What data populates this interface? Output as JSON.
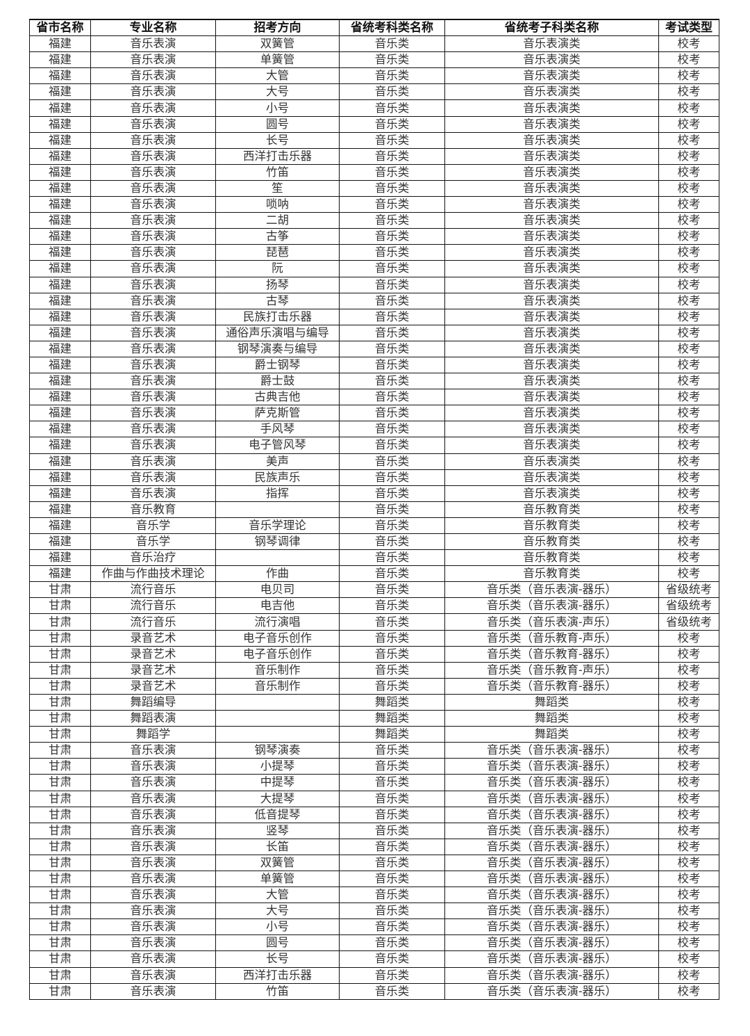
{
  "table": {
    "headers": [
      "省市名称",
      "专业名称",
      "招考方向",
      "省统考科类名称",
      "省统考子科类名称",
      "考试类型"
    ],
    "rows": [
      [
        "福建",
        "音乐表演",
        "双簧管",
        "音乐类",
        "音乐表演类",
        "校考"
      ],
      [
        "福建",
        "音乐表演",
        "单簧管",
        "音乐类",
        "音乐表演类",
        "校考"
      ],
      [
        "福建",
        "音乐表演",
        "大管",
        "音乐类",
        "音乐表演类",
        "校考"
      ],
      [
        "福建",
        "音乐表演",
        "大号",
        "音乐类",
        "音乐表演类",
        "校考"
      ],
      [
        "福建",
        "音乐表演",
        "小号",
        "音乐类",
        "音乐表演类",
        "校考"
      ],
      [
        "福建",
        "音乐表演",
        "圆号",
        "音乐类",
        "音乐表演类",
        "校考"
      ],
      [
        "福建",
        "音乐表演",
        "长号",
        "音乐类",
        "音乐表演类",
        "校考"
      ],
      [
        "福建",
        "音乐表演",
        "西洋打击乐器",
        "音乐类",
        "音乐表演类",
        "校考"
      ],
      [
        "福建",
        "音乐表演",
        "竹笛",
        "音乐类",
        "音乐表演类",
        "校考"
      ],
      [
        "福建",
        "音乐表演",
        "笙",
        "音乐类",
        "音乐表演类",
        "校考"
      ],
      [
        "福建",
        "音乐表演",
        "唢呐",
        "音乐类",
        "音乐表演类",
        "校考"
      ],
      [
        "福建",
        "音乐表演",
        "二胡",
        "音乐类",
        "音乐表演类",
        "校考"
      ],
      [
        "福建",
        "音乐表演",
        "古筝",
        "音乐类",
        "音乐表演类",
        "校考"
      ],
      [
        "福建",
        "音乐表演",
        "琵琶",
        "音乐类",
        "音乐表演类",
        "校考"
      ],
      [
        "福建",
        "音乐表演",
        "阮",
        "音乐类",
        "音乐表演类",
        "校考"
      ],
      [
        "福建",
        "音乐表演",
        "扬琴",
        "音乐类",
        "音乐表演类",
        "校考"
      ],
      [
        "福建",
        "音乐表演",
        "古琴",
        "音乐类",
        "音乐表演类",
        "校考"
      ],
      [
        "福建",
        "音乐表演",
        "民族打击乐器",
        "音乐类",
        "音乐表演类",
        "校考"
      ],
      [
        "福建",
        "音乐表演",
        "通俗声乐演唱与编导",
        "音乐类",
        "音乐表演类",
        "校考"
      ],
      [
        "福建",
        "音乐表演",
        "钢琴演奏与编导",
        "音乐类",
        "音乐表演类",
        "校考"
      ],
      [
        "福建",
        "音乐表演",
        "爵士钢琴",
        "音乐类",
        "音乐表演类",
        "校考"
      ],
      [
        "福建",
        "音乐表演",
        "爵士鼓",
        "音乐类",
        "音乐表演类",
        "校考"
      ],
      [
        "福建",
        "音乐表演",
        "古典吉他",
        "音乐类",
        "音乐表演类",
        "校考"
      ],
      [
        "福建",
        "音乐表演",
        "萨克斯管",
        "音乐类",
        "音乐表演类",
        "校考"
      ],
      [
        "福建",
        "音乐表演",
        "手风琴",
        "音乐类",
        "音乐表演类",
        "校考"
      ],
      [
        "福建",
        "音乐表演",
        "电子管风琴",
        "音乐类",
        "音乐表演类",
        "校考"
      ],
      [
        "福建",
        "音乐表演",
        "美声",
        "音乐类",
        "音乐表演类",
        "校考"
      ],
      [
        "福建",
        "音乐表演",
        "民族声乐",
        "音乐类",
        "音乐表演类",
        "校考"
      ],
      [
        "福建",
        "音乐表演",
        "指挥",
        "音乐类",
        "音乐表演类",
        "校考"
      ],
      [
        "福建",
        "音乐教育",
        "",
        "音乐类",
        "音乐教育类",
        "校考"
      ],
      [
        "福建",
        "音乐学",
        "音乐学理论",
        "音乐类",
        "音乐教育类",
        "校考"
      ],
      [
        "福建",
        "音乐学",
        "钢琴调律",
        "音乐类",
        "音乐教育类",
        "校考"
      ],
      [
        "福建",
        "音乐治疗",
        "",
        "音乐类",
        "音乐教育类",
        "校考"
      ],
      [
        "福建",
        "作曲与作曲技术理论",
        "作曲",
        "音乐类",
        "音乐教育类",
        "校考"
      ],
      [
        "甘肃",
        "流行音乐",
        "电贝司",
        "音乐类",
        "音乐类（音乐表演-器乐）",
        "省级统考"
      ],
      [
        "甘肃",
        "流行音乐",
        "电吉他",
        "音乐类",
        "音乐类（音乐表演-器乐）",
        "省级统考"
      ],
      [
        "甘肃",
        "流行音乐",
        "流行演唱",
        "音乐类",
        "音乐类（音乐表演-声乐）",
        "省级统考"
      ],
      [
        "甘肃",
        "录音艺术",
        "电子音乐创作",
        "音乐类",
        "音乐类（音乐教育-声乐）",
        "校考"
      ],
      [
        "甘肃",
        "录音艺术",
        "电子音乐创作",
        "音乐类",
        "音乐类（音乐教育-器乐）",
        "校考"
      ],
      [
        "甘肃",
        "录音艺术",
        "音乐制作",
        "音乐类",
        "音乐类（音乐教育-声乐）",
        "校考"
      ],
      [
        "甘肃",
        "录音艺术",
        "音乐制作",
        "音乐类",
        "音乐类（音乐教育-器乐）",
        "校考"
      ],
      [
        "甘肃",
        "舞蹈编导",
        "",
        "舞蹈类",
        "舞蹈类",
        "校考"
      ],
      [
        "甘肃",
        "舞蹈表演",
        "",
        "舞蹈类",
        "舞蹈类",
        "校考"
      ],
      [
        "甘肃",
        "舞蹈学",
        "",
        "舞蹈类",
        "舞蹈类",
        "校考"
      ],
      [
        "甘肃",
        "音乐表演",
        "钢琴演奏",
        "音乐类",
        "音乐类（音乐表演-器乐）",
        "校考"
      ],
      [
        "甘肃",
        "音乐表演",
        "小提琴",
        "音乐类",
        "音乐类（音乐表演-器乐）",
        "校考"
      ],
      [
        "甘肃",
        "音乐表演",
        "中提琴",
        "音乐类",
        "音乐类（音乐表演-器乐）",
        "校考"
      ],
      [
        "甘肃",
        "音乐表演",
        "大提琴",
        "音乐类",
        "音乐类（音乐表演-器乐）",
        "校考"
      ],
      [
        "甘肃",
        "音乐表演",
        "低音提琴",
        "音乐类",
        "音乐类（音乐表演-器乐）",
        "校考"
      ],
      [
        "甘肃",
        "音乐表演",
        "竖琴",
        "音乐类",
        "音乐类（音乐表演-器乐）",
        "校考"
      ],
      [
        "甘肃",
        "音乐表演",
        "长笛",
        "音乐类",
        "音乐类（音乐表演-器乐）",
        "校考"
      ],
      [
        "甘肃",
        "音乐表演",
        "双簧管",
        "音乐类",
        "音乐类（音乐表演-器乐）",
        "校考"
      ],
      [
        "甘肃",
        "音乐表演",
        "单簧管",
        "音乐类",
        "音乐类（音乐表演-器乐）",
        "校考"
      ],
      [
        "甘肃",
        "音乐表演",
        "大管",
        "音乐类",
        "音乐类（音乐表演-器乐）",
        "校考"
      ],
      [
        "甘肃",
        "音乐表演",
        "大号",
        "音乐类",
        "音乐类（音乐表演-器乐）",
        "校考"
      ],
      [
        "甘肃",
        "音乐表演",
        "小号",
        "音乐类",
        "音乐类（音乐表演-器乐）",
        "校考"
      ],
      [
        "甘肃",
        "音乐表演",
        "圆号",
        "音乐类",
        "音乐类（音乐表演-器乐）",
        "校考"
      ],
      [
        "甘肃",
        "音乐表演",
        "长号",
        "音乐类",
        "音乐类（音乐表演-器乐）",
        "校考"
      ],
      [
        "甘肃",
        "音乐表演",
        "西洋打击乐器",
        "音乐类",
        "音乐类（音乐表演-器乐）",
        "校考"
      ],
      [
        "甘肃",
        "音乐表演",
        "竹笛",
        "音乐类",
        "音乐类（音乐表演-器乐）",
        "校考"
      ]
    ]
  }
}
